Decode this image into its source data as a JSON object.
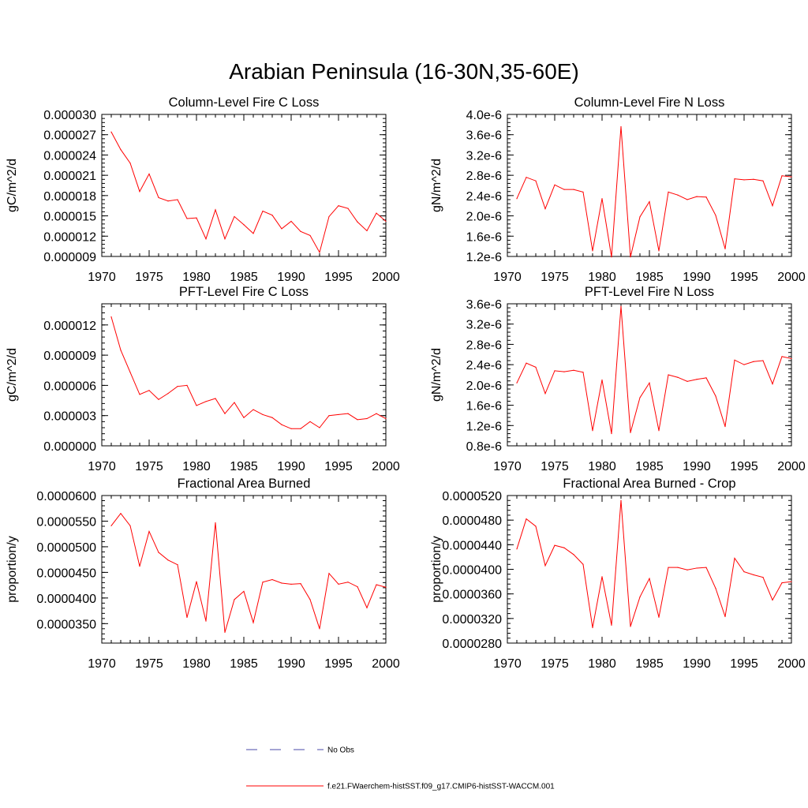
{
  "page_title": "Arabian Peninsula (16-30N,35-60E)",
  "legend": [
    {
      "label": "No Obs",
      "color": "#4a4aa8",
      "style": "dashed"
    },
    {
      "label": "f.e21.FWaerchem-histSST.f09_g17.CMIP6-histSST-WACCM.001",
      "color": "#ff0000",
      "style": "solid"
    }
  ],
  "chart_data": [
    {
      "type": "line",
      "title": "Column-Level Fire C Loss",
      "ylabel": "gC/m^2/d",
      "xlim": [
        1970,
        2000
      ],
      "ylim": [
        9e-06,
        3e-05
      ],
      "xticks": [
        1970,
        1975,
        1980,
        1985,
        1990,
        1995,
        2000
      ],
      "xtick_labels": [
        "1970",
        "1975",
        "1980",
        "1985",
        "1990",
        "1995",
        "2000"
      ],
      "yticks": [
        9e-06,
        1.2e-05,
        1.5e-05,
        1.8e-05,
        2.1e-05,
        2.4e-05,
        2.7e-05,
        3e-05
      ],
      "ytick_labels": [
        "0.000009",
        "0.000012",
        "0.000015",
        "0.000018",
        "0.000021",
        "0.000024",
        "0.000027",
        "0.000030"
      ],
      "x": [
        1971,
        1972,
        1973,
        1974,
        1975,
        1976,
        1977,
        1978,
        1979,
        1980,
        1981,
        1982,
        1983,
        1984,
        1985,
        1986,
        1987,
        1988,
        1989,
        1990,
        1991,
        1992,
        1993,
        1994,
        1995,
        1996,
        1997,
        1998,
        1999,
        2000
      ],
      "series": [
        {
          "color": "#ff0000",
          "values": [
            2.74e-05,
            2.48e-05,
            2.28e-05,
            1.86e-05,
            2.12e-05,
            1.77e-05,
            1.72e-05,
            1.74e-05,
            1.46e-05,
            1.47e-05,
            1.16e-05,
            1.59e-05,
            1.16e-05,
            1.49e-05,
            1.37e-05,
            1.24e-05,
            1.57e-05,
            1.51e-05,
            1.31e-05,
            1.42e-05,
            1.27e-05,
            1.21e-05,
            9.6e-06,
            1.49e-05,
            1.65e-05,
            1.61e-05,
            1.41e-05,
            1.28e-05,
            1.54e-05,
            1.42e-05
          ]
        }
      ]
    },
    {
      "type": "line",
      "title": "Column-Level Fire N Loss",
      "ylabel": "gN/m^2/d",
      "xlim": [
        1970,
        2000
      ],
      "ylim": [
        1.2e-06,
        4e-06
      ],
      "xticks": [
        1970,
        1975,
        1980,
        1985,
        1990,
        1995,
        2000
      ],
      "xtick_labels": [
        "1970",
        "1975",
        "1980",
        "1985",
        "1990",
        "1995",
        "2000"
      ],
      "yticks": [
        1.2e-06,
        1.6e-06,
        2e-06,
        2.4e-06,
        2.8e-06,
        3.2e-06,
        3.6e-06,
        4e-06
      ],
      "ytick_labels": [
        "1.2e-6",
        "1.6e-6",
        "2.0e-6",
        "2.4e-6",
        "2.8e-6",
        "3.2e-6",
        "3.6e-6",
        "4.0e-6"
      ],
      "x": [
        1971,
        1972,
        1973,
        1974,
        1975,
        1976,
        1977,
        1978,
        1979,
        1980,
        1981,
        1982,
        1983,
        1984,
        1985,
        1986,
        1987,
        1988,
        1989,
        1990,
        1991,
        1992,
        1993,
        1994,
        1995,
        1996,
        1997,
        1998,
        1999,
        2000
      ],
      "series": [
        {
          "color": "#ff0000",
          "values": [
            2.34e-06,
            2.76e-06,
            2.69e-06,
            2.14e-06,
            2.61e-06,
            2.52e-06,
            2.52e-06,
            2.47e-06,
            1.31e-06,
            2.34e-06,
            1.19e-06,
            3.76e-06,
            1.19e-06,
            1.98e-06,
            2.28e-06,
            1.31e-06,
            2.47e-06,
            2.41e-06,
            2.32e-06,
            2.38e-06,
            2.37e-06,
            2.01e-06,
            1.35e-06,
            2.73e-06,
            2.71e-06,
            2.72e-06,
            2.69e-06,
            2.2e-06,
            2.79e-06,
            2.77e-06
          ]
        }
      ]
    },
    {
      "type": "line",
      "title": "PFT-Level Fire C Loss",
      "ylabel": "gC/m^2/d",
      "xlim": [
        1970,
        2000
      ],
      "ylim": [
        0.0,
        1.41e-05
      ],
      "xticks": [
        1970,
        1975,
        1980,
        1985,
        1990,
        1995,
        2000
      ],
      "xtick_labels": [
        "1970",
        "1975",
        "1980",
        "1985",
        "1990",
        "1995",
        "2000"
      ],
      "yticks": [
        0.0,
        3e-06,
        6e-06,
        9e-06,
        1.2e-05
      ],
      "ytick_labels": [
        "0.000000",
        "0.000003",
        "0.000006",
        "0.000009",
        "0.000012"
      ],
      "x": [
        1971,
        1972,
        1973,
        1974,
        1975,
        1976,
        1977,
        1978,
        1979,
        1980,
        1981,
        1982,
        1983,
        1984,
        1985,
        1986,
        1987,
        1988,
        1989,
        1990,
        1991,
        1992,
        1993,
        1994,
        1995,
        1996,
        1997,
        1998,
        1999,
        2000
      ],
      "series": [
        {
          "color": "#ff0000",
          "values": [
            1.28e-05,
            9.5e-06,
            7.3e-06,
            5.1e-06,
            5.5e-06,
            4.6e-06,
            5.2e-06,
            5.9e-06,
            6e-06,
            4e-06,
            4.4e-06,
            4.7e-06,
            3.2e-06,
            4.3e-06,
            2.8e-06,
            3.6e-06,
            3.1e-06,
            2.8e-06,
            2.1e-06,
            1.7e-06,
            1.7e-06,
            2.4e-06,
            1.8e-06,
            3e-06,
            3.1e-06,
            3.2e-06,
            2.6e-06,
            2.7e-06,
            3.2e-06,
            2.7e-06
          ]
        }
      ]
    },
    {
      "type": "line",
      "title": "PFT-Level Fire N Loss",
      "ylabel": "gN/m^2/d",
      "xlim": [
        1970,
        2000
      ],
      "ylim": [
        8e-07,
        3.6e-06
      ],
      "xticks": [
        1970,
        1975,
        1980,
        1985,
        1990,
        1995,
        2000
      ],
      "xtick_labels": [
        "1970",
        "1975",
        "1980",
        "1985",
        "1990",
        "1995",
        "2000"
      ],
      "yticks": [
        8e-07,
        1.2e-06,
        1.6e-06,
        2e-06,
        2.4e-06,
        2.8e-06,
        3.2e-06,
        3.6e-06
      ],
      "ytick_labels": [
        "0.8e-6",
        "1.2e-6",
        "1.6e-6",
        "2.0e-6",
        "2.4e-6",
        "2.8e-6",
        "3.2e-6",
        "3.6e-6"
      ],
      "x": [
        1971,
        1972,
        1973,
        1974,
        1975,
        1976,
        1977,
        1978,
        1979,
        1980,
        1981,
        1982,
        1983,
        1984,
        1985,
        1986,
        1987,
        1988,
        1989,
        1990,
        1991,
        1992,
        1993,
        1994,
        1995,
        1996,
        1997,
        1998,
        1999,
        2000
      ],
      "series": [
        {
          "color": "#ff0000",
          "values": [
            2.04e-06,
            2.43e-06,
            2.35e-06,
            1.83e-06,
            2.28e-06,
            2.26e-06,
            2.29e-06,
            2.25e-06,
            1.1e-06,
            2.1e-06,
            1.04e-06,
            3.55e-06,
            1.06e-06,
            1.75e-06,
            2.04e-06,
            1.1e-06,
            2.2e-06,
            2.15e-06,
            2.07e-06,
            2.11e-06,
            2.14e-06,
            1.78e-06,
            1.18e-06,
            2.49e-06,
            2.4e-06,
            2.46e-06,
            2.48e-06,
            2.02e-06,
            2.56e-06,
            2.52e-06
          ]
        }
      ]
    },
    {
      "type": "line",
      "title": "Fractional Area Burned",
      "ylabel": "proportion/y",
      "xlim": [
        1970,
        2000
      ],
      "ylim": [
        3.12e-05,
        6e-05
      ],
      "xticks": [
        1970,
        1975,
        1980,
        1985,
        1990,
        1995,
        2000
      ],
      "xtick_labels": [
        "1970",
        "1975",
        "1980",
        "1985",
        "1990",
        "1995",
        "2000"
      ],
      "yticks": [
        3.5e-05,
        4e-05,
        4.5e-05,
        5e-05,
        5.5e-05,
        6e-05
      ],
      "ytick_labels": [
        "0.0000350",
        "0.0000400",
        "0.0000450",
        "0.0000500",
        "0.0000550",
        "0.0000600"
      ],
      "x": [
        1971,
        1972,
        1973,
        1974,
        1975,
        1976,
        1977,
        1978,
        1979,
        1980,
        1981,
        1982,
        1983,
        1984,
        1985,
        1986,
        1987,
        1988,
        1989,
        1990,
        1991,
        1992,
        1993,
        1994,
        1995,
        1996,
        1997,
        1998,
        1999,
        2000
      ],
      "series": [
        {
          "color": "#ff0000",
          "values": [
            5.41e-05,
            5.65e-05,
            5.41e-05,
            4.62e-05,
            5.3e-05,
            4.89e-05,
            4.74e-05,
            4.65e-05,
            3.62e-05,
            4.32e-05,
            3.55e-05,
            5.47e-05,
            3.33e-05,
            3.97e-05,
            4.13e-05,
            3.52e-05,
            4.31e-05,
            4.36e-05,
            4.29e-05,
            4.27e-05,
            4.28e-05,
            3.97e-05,
            3.4e-05,
            4.48e-05,
            4.27e-05,
            4.31e-05,
            4.22e-05,
            3.81e-05,
            4.26e-05,
            4.21e-05
          ]
        }
      ]
    },
    {
      "type": "line",
      "title": "Fractional Area Burned - Crop",
      "ylabel": "proportion/y",
      "xlim": [
        1970,
        2000
      ],
      "ylim": [
        2.8e-05,
        5.2e-05
      ],
      "xticks": [
        1970,
        1975,
        1980,
        1985,
        1990,
        1995,
        2000
      ],
      "xtick_labels": [
        "1970",
        "1975",
        "1980",
        "1985",
        "1990",
        "1995",
        "2000"
      ],
      "yticks": [
        2.8e-05,
        3.2e-05,
        3.6e-05,
        4e-05,
        4.4e-05,
        4.8e-05,
        5.2e-05
      ],
      "ytick_labels": [
        "0.0000280",
        "0.0000320",
        "0.0000360",
        "0.0000400",
        "0.0000440",
        "0.0000480",
        "0.0000520"
      ],
      "x": [
        1971,
        1972,
        1973,
        1974,
        1975,
        1976,
        1977,
        1978,
        1979,
        1980,
        1981,
        1982,
        1983,
        1984,
        1985,
        1986,
        1987,
        1988,
        1989,
        1990,
        1991,
        1992,
        1993,
        1994,
        1995,
        1996,
        1997,
        1998,
        1999,
        2000
      ],
      "series": [
        {
          "color": "#ff0000",
          "values": [
            4.33e-05,
            4.82e-05,
            4.7e-05,
            4.06e-05,
            4.39e-05,
            4.35e-05,
            4.24e-05,
            4.08e-05,
            3.05e-05,
            3.88e-05,
            3.09e-05,
            5.12e-05,
            3.07e-05,
            3.55e-05,
            3.85e-05,
            3.22e-05,
            4.03e-05,
            4.03e-05,
            3.99e-05,
            4.02e-05,
            4.03e-05,
            3.69e-05,
            3.23e-05,
            4.18e-05,
            3.96e-05,
            3.91e-05,
            3.87e-05,
            3.5e-05,
            3.78e-05,
            3.8e-05
          ]
        }
      ]
    }
  ]
}
